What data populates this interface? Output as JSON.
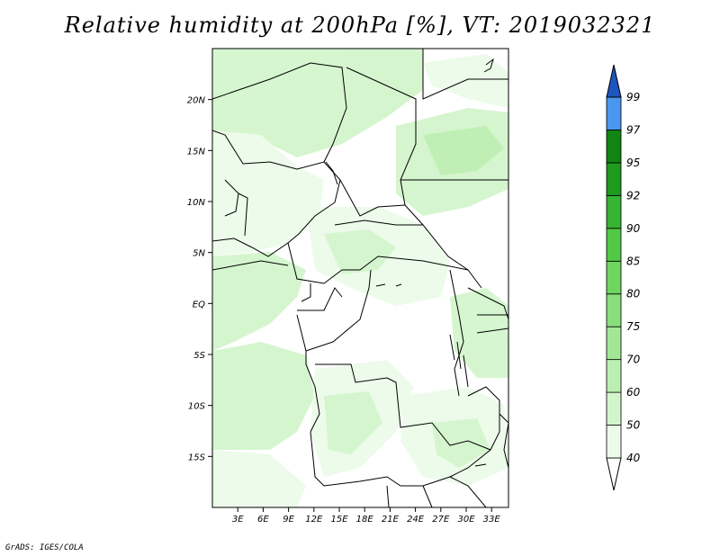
{
  "title": "Relative humidity at 200hPa [%], VT: 2019032321",
  "credit": "GrADS: IGES/COLA",
  "map": {
    "lon_range": [
      0,
      35
    ],
    "lat_range": [
      -20,
      25
    ],
    "x_ticks": [
      "3E",
      "6E",
      "9E",
      "12E",
      "15E",
      "18E",
      "21E",
      "24E",
      "27E",
      "30E",
      "33E"
    ],
    "x_tick_values": [
      3,
      6,
      9,
      12,
      15,
      18,
      21,
      24,
      27,
      30,
      33
    ],
    "y_ticks": [
      "20N",
      "15N",
      "10N",
      "5N",
      "EQ",
      "5S",
      "10S",
      "15S"
    ],
    "y_tick_values": [
      20,
      15,
      10,
      5,
      0,
      -5,
      -10,
      -15
    ]
  },
  "colorbar": {
    "labels": [
      "40",
      "50",
      "60",
      "70",
      "75",
      "80",
      "85",
      "90",
      "92",
      "95",
      "97",
      "99"
    ],
    "colors": [
      "#ecfbe9",
      "#d3f5cc",
      "#bcefb2",
      "#a3e796",
      "#8ade7b",
      "#6fd55f",
      "#52c945",
      "#37b431",
      "#1e9a1d",
      "#128412",
      "#4a97ef",
      "#2b73dc",
      "#1e55bf"
    ]
  }
}
